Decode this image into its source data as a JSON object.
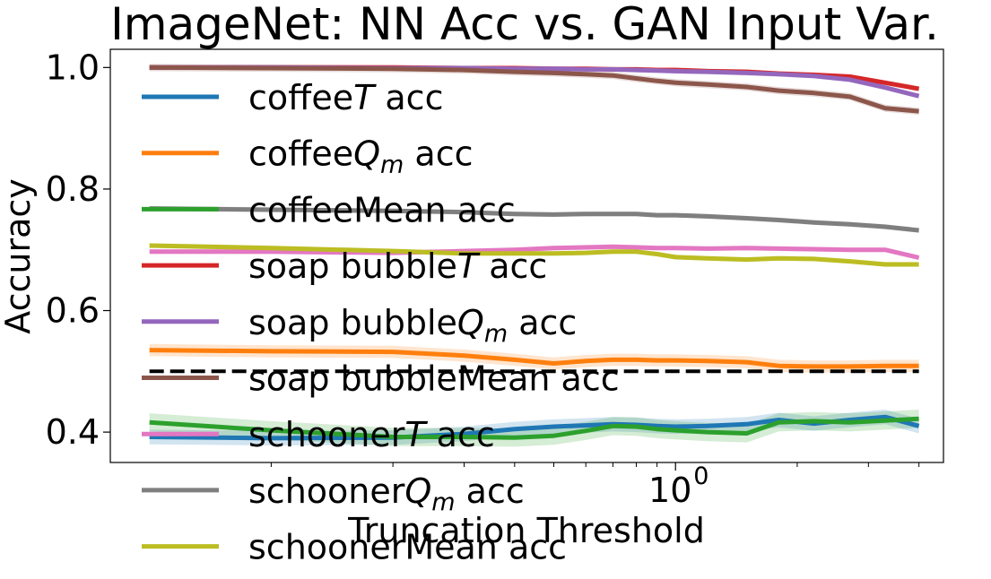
{
  "chart_data": {
    "type": "line",
    "title": "ImageNet: NN Acc vs. GAN Input Var.",
    "xlabel": "Truncation Threshold",
    "ylabel": "Accuracy",
    "x_scale": "log",
    "xlim": [
      0.04,
      4.6
    ],
    "ylim": [
      0.35,
      1.03
    ],
    "x_major_ticks": [
      {
        "value": 1,
        "label": "10",
        "exponent": "0"
      }
    ],
    "x_minor_ticks": [
      0.1,
      0.2,
      0.3,
      0.4,
      0.5,
      0.6,
      0.7,
      0.8,
      0.9,
      2,
      3,
      4
    ],
    "y_ticks": [
      {
        "value": 0.4,
        "label": "0.4"
      },
      {
        "value": 0.6,
        "label": "0.6"
      },
      {
        "value": 0.8,
        "label": "0.8"
      },
      {
        "value": 1.0,
        "label": "1.0"
      }
    ],
    "grid": false,
    "legend_position": "upper-left, overflowing below the axes",
    "x": [
      0.05,
      0.1,
      0.2,
      0.3,
      0.4,
      0.5,
      0.6,
      0.7,
      0.8,
      0.9,
      1.0,
      1.2,
      1.5,
      1.8,
      2.2,
      2.7,
      3.3,
      4.0
    ],
    "series": [
      {
        "name": "coffee",
        "label_suffix": "T",
        "label_tail": " acc",
        "italic_suffix": true,
        "sub": "",
        "color": "#1f77b4",
        "values": [
          0.392,
          0.39,
          0.391,
          0.397,
          0.405,
          0.409,
          0.411,
          0.413,
          0.412,
          0.41,
          0.409,
          0.41,
          0.413,
          0.42,
          0.414,
          0.42,
          0.425,
          0.41
        ],
        "band": 0.012
      },
      {
        "name": "coffee",
        "label_suffix": "Q",
        "label_tail": " acc",
        "italic_suffix": true,
        "sub": "m",
        "color": "#ff7f0e",
        "values": [
          0.535,
          0.533,
          0.532,
          0.526,
          0.519,
          0.513,
          0.517,
          0.519,
          0.519,
          0.518,
          0.518,
          0.517,
          0.515,
          0.509,
          0.508,
          0.508,
          0.509,
          0.509
        ],
        "band": 0.01
      },
      {
        "name": "coffee",
        "label_suffix": "Mean",
        "label_tail": " acc",
        "italic_suffix": false,
        "sub": "",
        "color": "#2ca02c",
        "values": [
          0.416,
          0.403,
          0.392,
          0.392,
          0.391,
          0.394,
          0.402,
          0.41,
          0.409,
          0.405,
          0.403,
          0.4,
          0.398,
          0.416,
          0.418,
          0.416,
          0.419,
          0.422
        ],
        "band": 0.015
      },
      {
        "name": "soap bubble",
        "label_suffix": "T",
        "label_tail": " acc",
        "italic_suffix": true,
        "sub": "",
        "color": "#d62728",
        "values": [
          1.0,
          1.0,
          1.0,
          0.999,
          0.999,
          0.998,
          0.998,
          0.997,
          0.997,
          0.996,
          0.996,
          0.994,
          0.993,
          0.99,
          0.988,
          0.985,
          0.975,
          0.965
        ],
        "band": 0.004
      },
      {
        "name": "soap bubble",
        "label_suffix": "Q",
        "label_tail": " acc",
        "italic_suffix": true,
        "sub": "m",
        "color": "#9467bd",
        "values": [
          1.0,
          1.0,
          0.999,
          0.999,
          0.998,
          0.998,
          0.997,
          0.997,
          0.996,
          0.995,
          0.994,
          0.993,
          0.991,
          0.989,
          0.986,
          0.98,
          0.967,
          0.953
        ],
        "band": 0.004
      },
      {
        "name": "soap bubble",
        "label_suffix": "Mean",
        "label_tail": " acc",
        "italic_suffix": false,
        "sub": "",
        "color": "#8c564b",
        "values": [
          1.0,
          0.999,
          0.998,
          0.996,
          0.993,
          0.991,
          0.989,
          0.987,
          0.982,
          0.978,
          0.975,
          0.972,
          0.968,
          0.962,
          0.958,
          0.952,
          0.933,
          0.928
        ],
        "band": 0.006
      },
      {
        "name": "schooner",
        "label_suffix": "T",
        "label_tail": " acc",
        "italic_suffix": true,
        "sub": "",
        "color": "#e377c2",
        "values": [
          0.697,
          0.697,
          0.695,
          0.698,
          0.7,
          0.703,
          0.704,
          0.705,
          0.704,
          0.703,
          0.703,
          0.702,
          0.703,
          0.702,
          0.701,
          0.7,
          0.7,
          0.687
        ],
        "band": 0.004
      },
      {
        "name": "schooner",
        "label_suffix": "Q",
        "label_tail": " acc",
        "italic_suffix": true,
        "sub": "m",
        "color": "#7f7f7f",
        "values": [
          0.768,
          0.766,
          0.764,
          0.762,
          0.759,
          0.758,
          0.759,
          0.759,
          0.759,
          0.757,
          0.757,
          0.755,
          0.752,
          0.749,
          0.745,
          0.742,
          0.738,
          0.732
        ],
        "band": 0.004
      },
      {
        "name": "schooner",
        "label_suffix": "Mean",
        "label_tail": " acc",
        "italic_suffix": false,
        "sub": "",
        "color": "#bcbd22",
        "values": [
          0.707,
          0.703,
          0.698,
          0.694,
          0.694,
          0.694,
          0.695,
          0.697,
          0.697,
          0.693,
          0.688,
          0.686,
          0.684,
          0.686,
          0.685,
          0.681,
          0.676,
          0.676
        ],
        "band": 0.004
      }
    ],
    "reference_line": {
      "y": 0.5,
      "style": "dashed",
      "color": "#000000",
      "x_range": [
        0.05,
        4.0
      ]
    }
  }
}
